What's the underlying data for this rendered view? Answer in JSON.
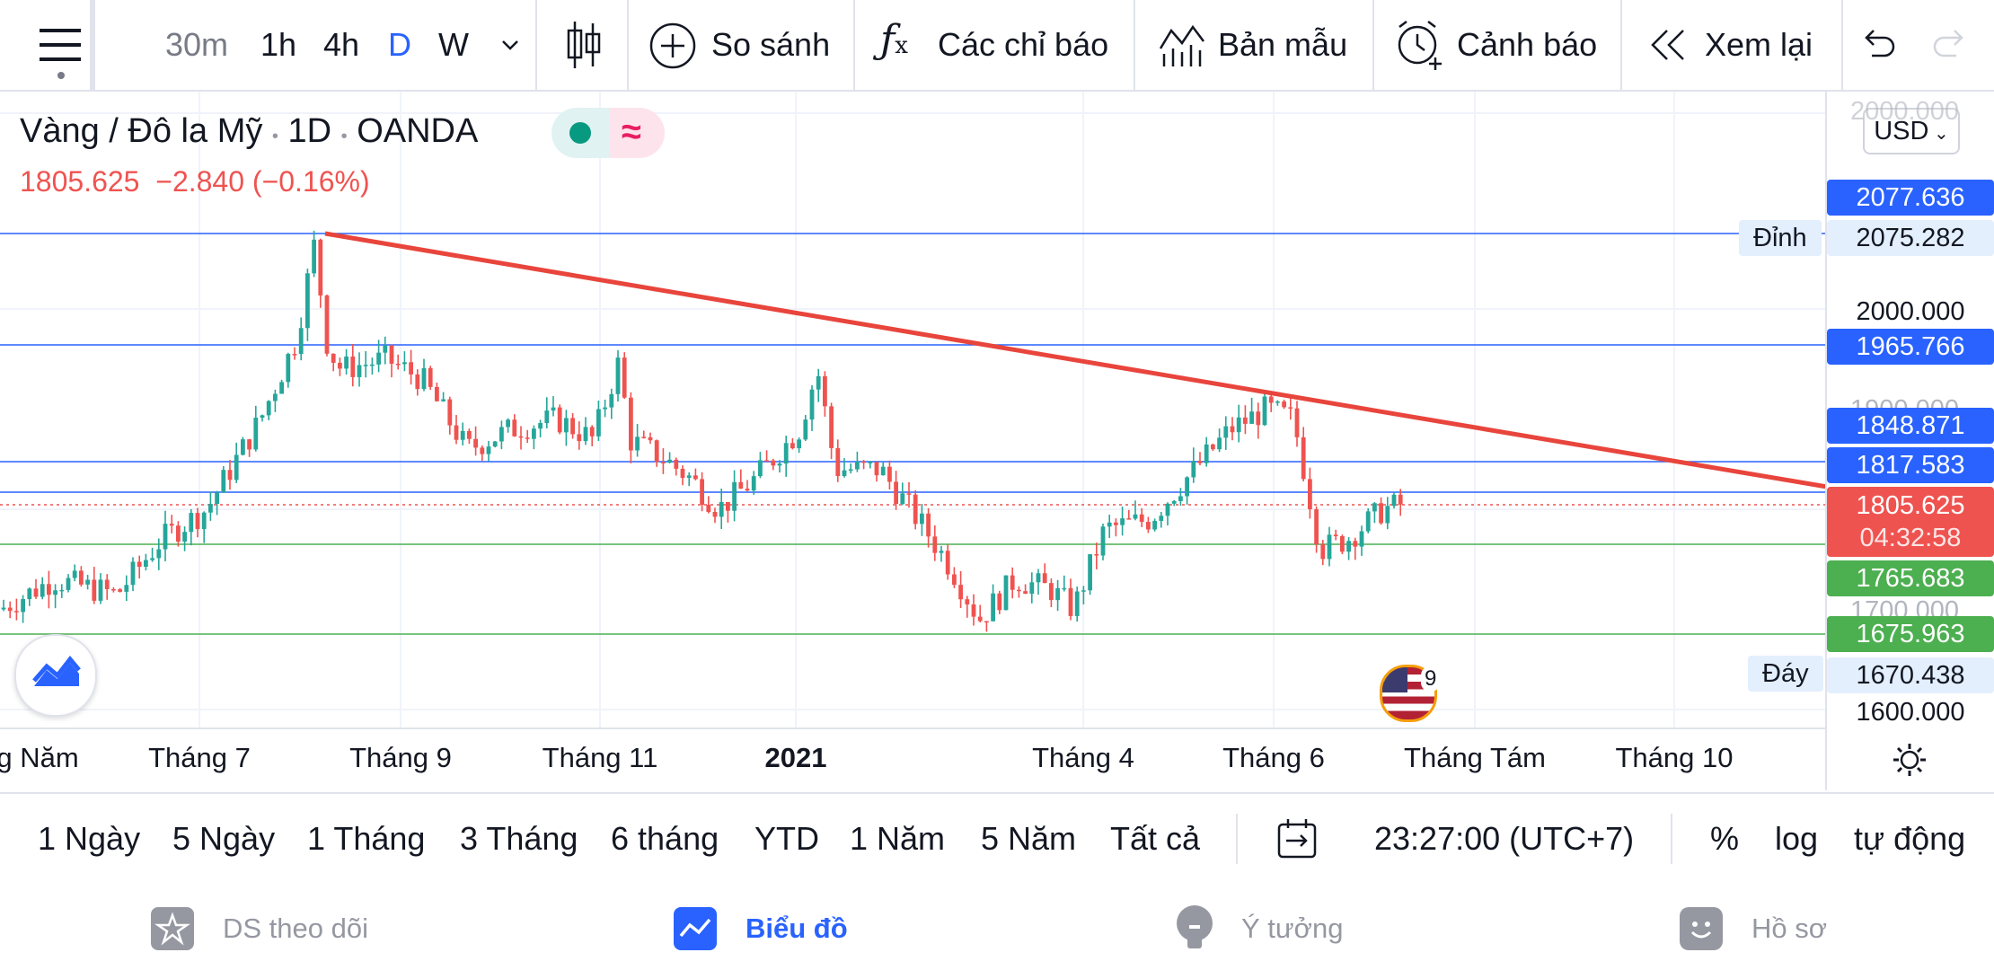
{
  "toolbar": {
    "intervals": [
      "30m",
      "1h",
      "4h",
      "D",
      "W"
    ],
    "active_interval": "D",
    "compare_label": "So sánh",
    "indicators_label": "Các chỉ báo",
    "templates_label": "Bản mẫu",
    "alerts_label": "Cảnh báo",
    "replay_label": "Xem lại"
  },
  "legend": {
    "symbol": "Vàng / Đô la Mỹ",
    "interval": "1D",
    "exchange": "OANDA",
    "last": "1805.625",
    "change": "−2.840",
    "change_pct": "(−0.16%)",
    "currency": "USD"
  },
  "price_scale": {
    "ticks": [
      "2000.000",
      "1600.000"
    ],
    "labels": [
      {
        "text": "2077.636",
        "color": "#2962ff"
      },
      {
        "text": "2075.282",
        "color": "#e3effd",
        "tag": "Đỉnh"
      },
      {
        "text": "1965.766",
        "color": "#2962ff"
      },
      {
        "text": "1848.871",
        "color": "#2962ff"
      },
      {
        "text": "1817.583",
        "color": "#2962ff"
      },
      {
        "text": "1805.625",
        "color": "#ef5350",
        "countdown": "04:32:58"
      },
      {
        "text": "1765.683",
        "color": "#4caf50"
      },
      {
        "text": "1675.963",
        "color": "#4caf50"
      },
      {
        "text": "1670.438",
        "color": "#e3effd",
        "tag": "Đáy"
      }
    ]
  },
  "time_axis": [
    "g Năm",
    "Tháng 7",
    "Tháng 9",
    "Tháng 11",
    "2021",
    "Tháng 4",
    "Tháng 6",
    "Tháng Tám",
    "Tháng 10"
  ],
  "badge_count": "9",
  "range_bar": {
    "ranges": [
      "1 Ngày",
      "5 Ngày",
      "1 Tháng",
      "3 Tháng",
      "6 tháng",
      "YTD",
      "1 Năm",
      "5 Năm",
      "Tất cả"
    ],
    "clock": "23:27:00 (UTC+7)",
    "percent": "%",
    "log": "log",
    "auto": "tự động"
  },
  "bottom_nav": [
    {
      "label": "DS theo dõi",
      "icon": "star-icon",
      "active": false
    },
    {
      "label": "Biểu đồ",
      "icon": "chart-icon",
      "active": true
    },
    {
      "label": "Ý tưởng",
      "icon": "lightbulb-icon",
      "active": false
    },
    {
      "label": "Hồ sơ",
      "icon": "smile-icon",
      "active": false
    }
  ],
  "colors": {
    "up": "#26a69a",
    "down": "#ef5350",
    "trendline": "#e8453c",
    "hline_blue": "#2962ff",
    "hline_green": "#4caf50",
    "accent": "#2962ff"
  }
}
